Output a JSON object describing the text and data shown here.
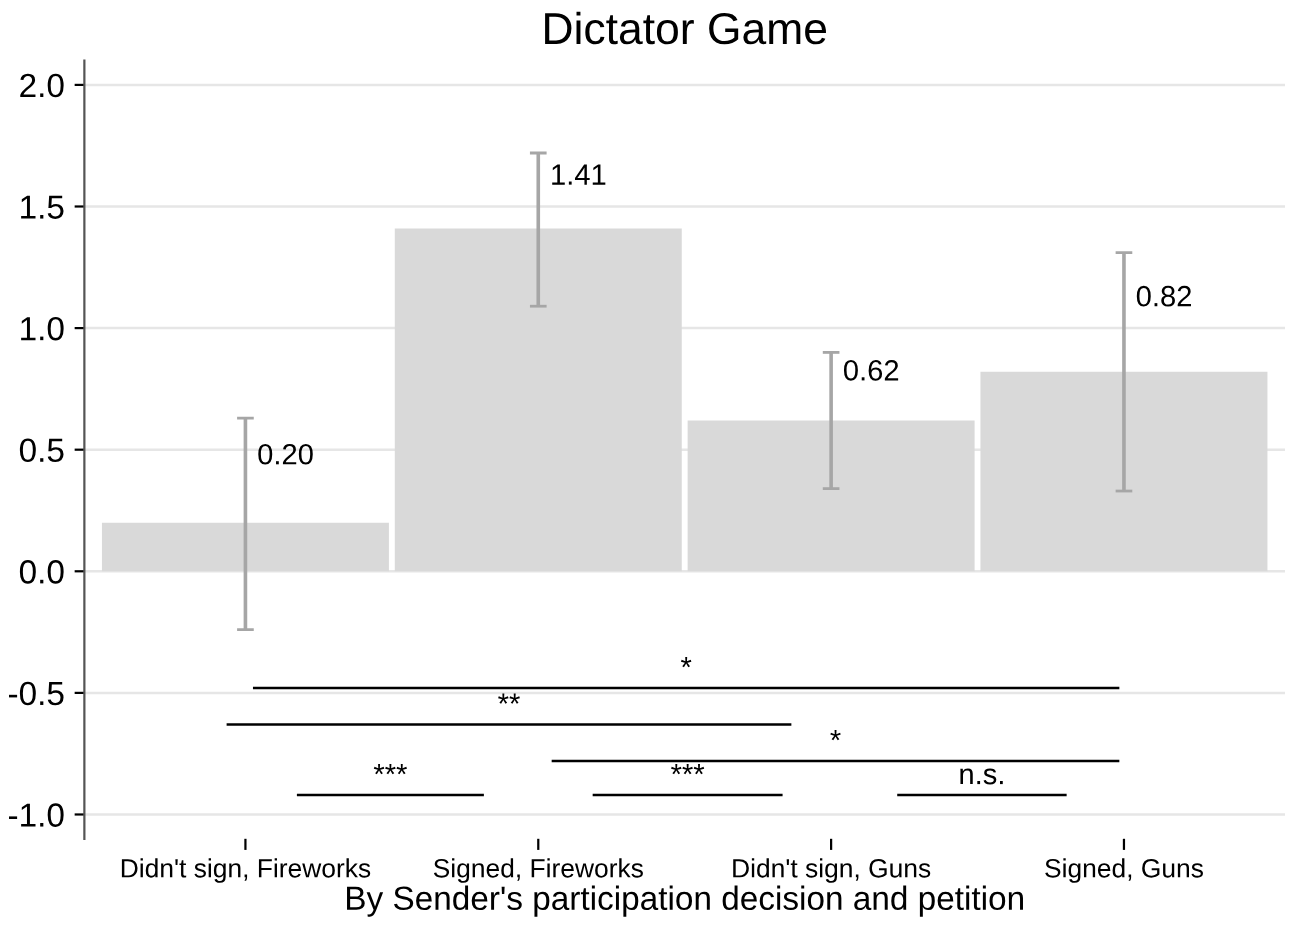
{
  "chart_data": {
    "type": "bar",
    "title": "Dictator Game",
    "xlabel": "By Sender's participation decision and petition",
    "categories": [
      "Didn't sign, Fireworks",
      "Signed, Fireworks",
      "Didn't sign, Guns",
      "Signed, Guns"
    ],
    "values": [
      0.2,
      1.41,
      0.62,
      0.82
    ],
    "color": "#d9d9d9",
    "errors": [
      [
        -0.24,
        0.63
      ],
      [
        1.09,
        1.72
      ],
      [
        0.34,
        0.9
      ],
      [
        0.33,
        1.31
      ]
    ],
    "ylim": [
      -1.1,
      2.1
    ],
    "yticks": [
      {
        "value": -1,
        "label": "-1.0"
      },
      {
        "value": -0.5,
        "label": "-0.5"
      },
      {
        "value": 0,
        "label": "0.0"
      },
      {
        "value": 0.5,
        "label": "0.5"
      },
      {
        "value": 1,
        "label": "1.0"
      },
      {
        "value": 1.5,
        "label": "1.5"
      },
      {
        "value": 2,
        "label": "2.0"
      }
    ],
    "grid": "y",
    "value_labels": [
      "0.20",
      "1.41",
      "0.62",
      "0.82"
    ],
    "annotations": [
      "*",
      "**",
      "*",
      "***",
      "***",
      "n.s."
    ]
  }
}
